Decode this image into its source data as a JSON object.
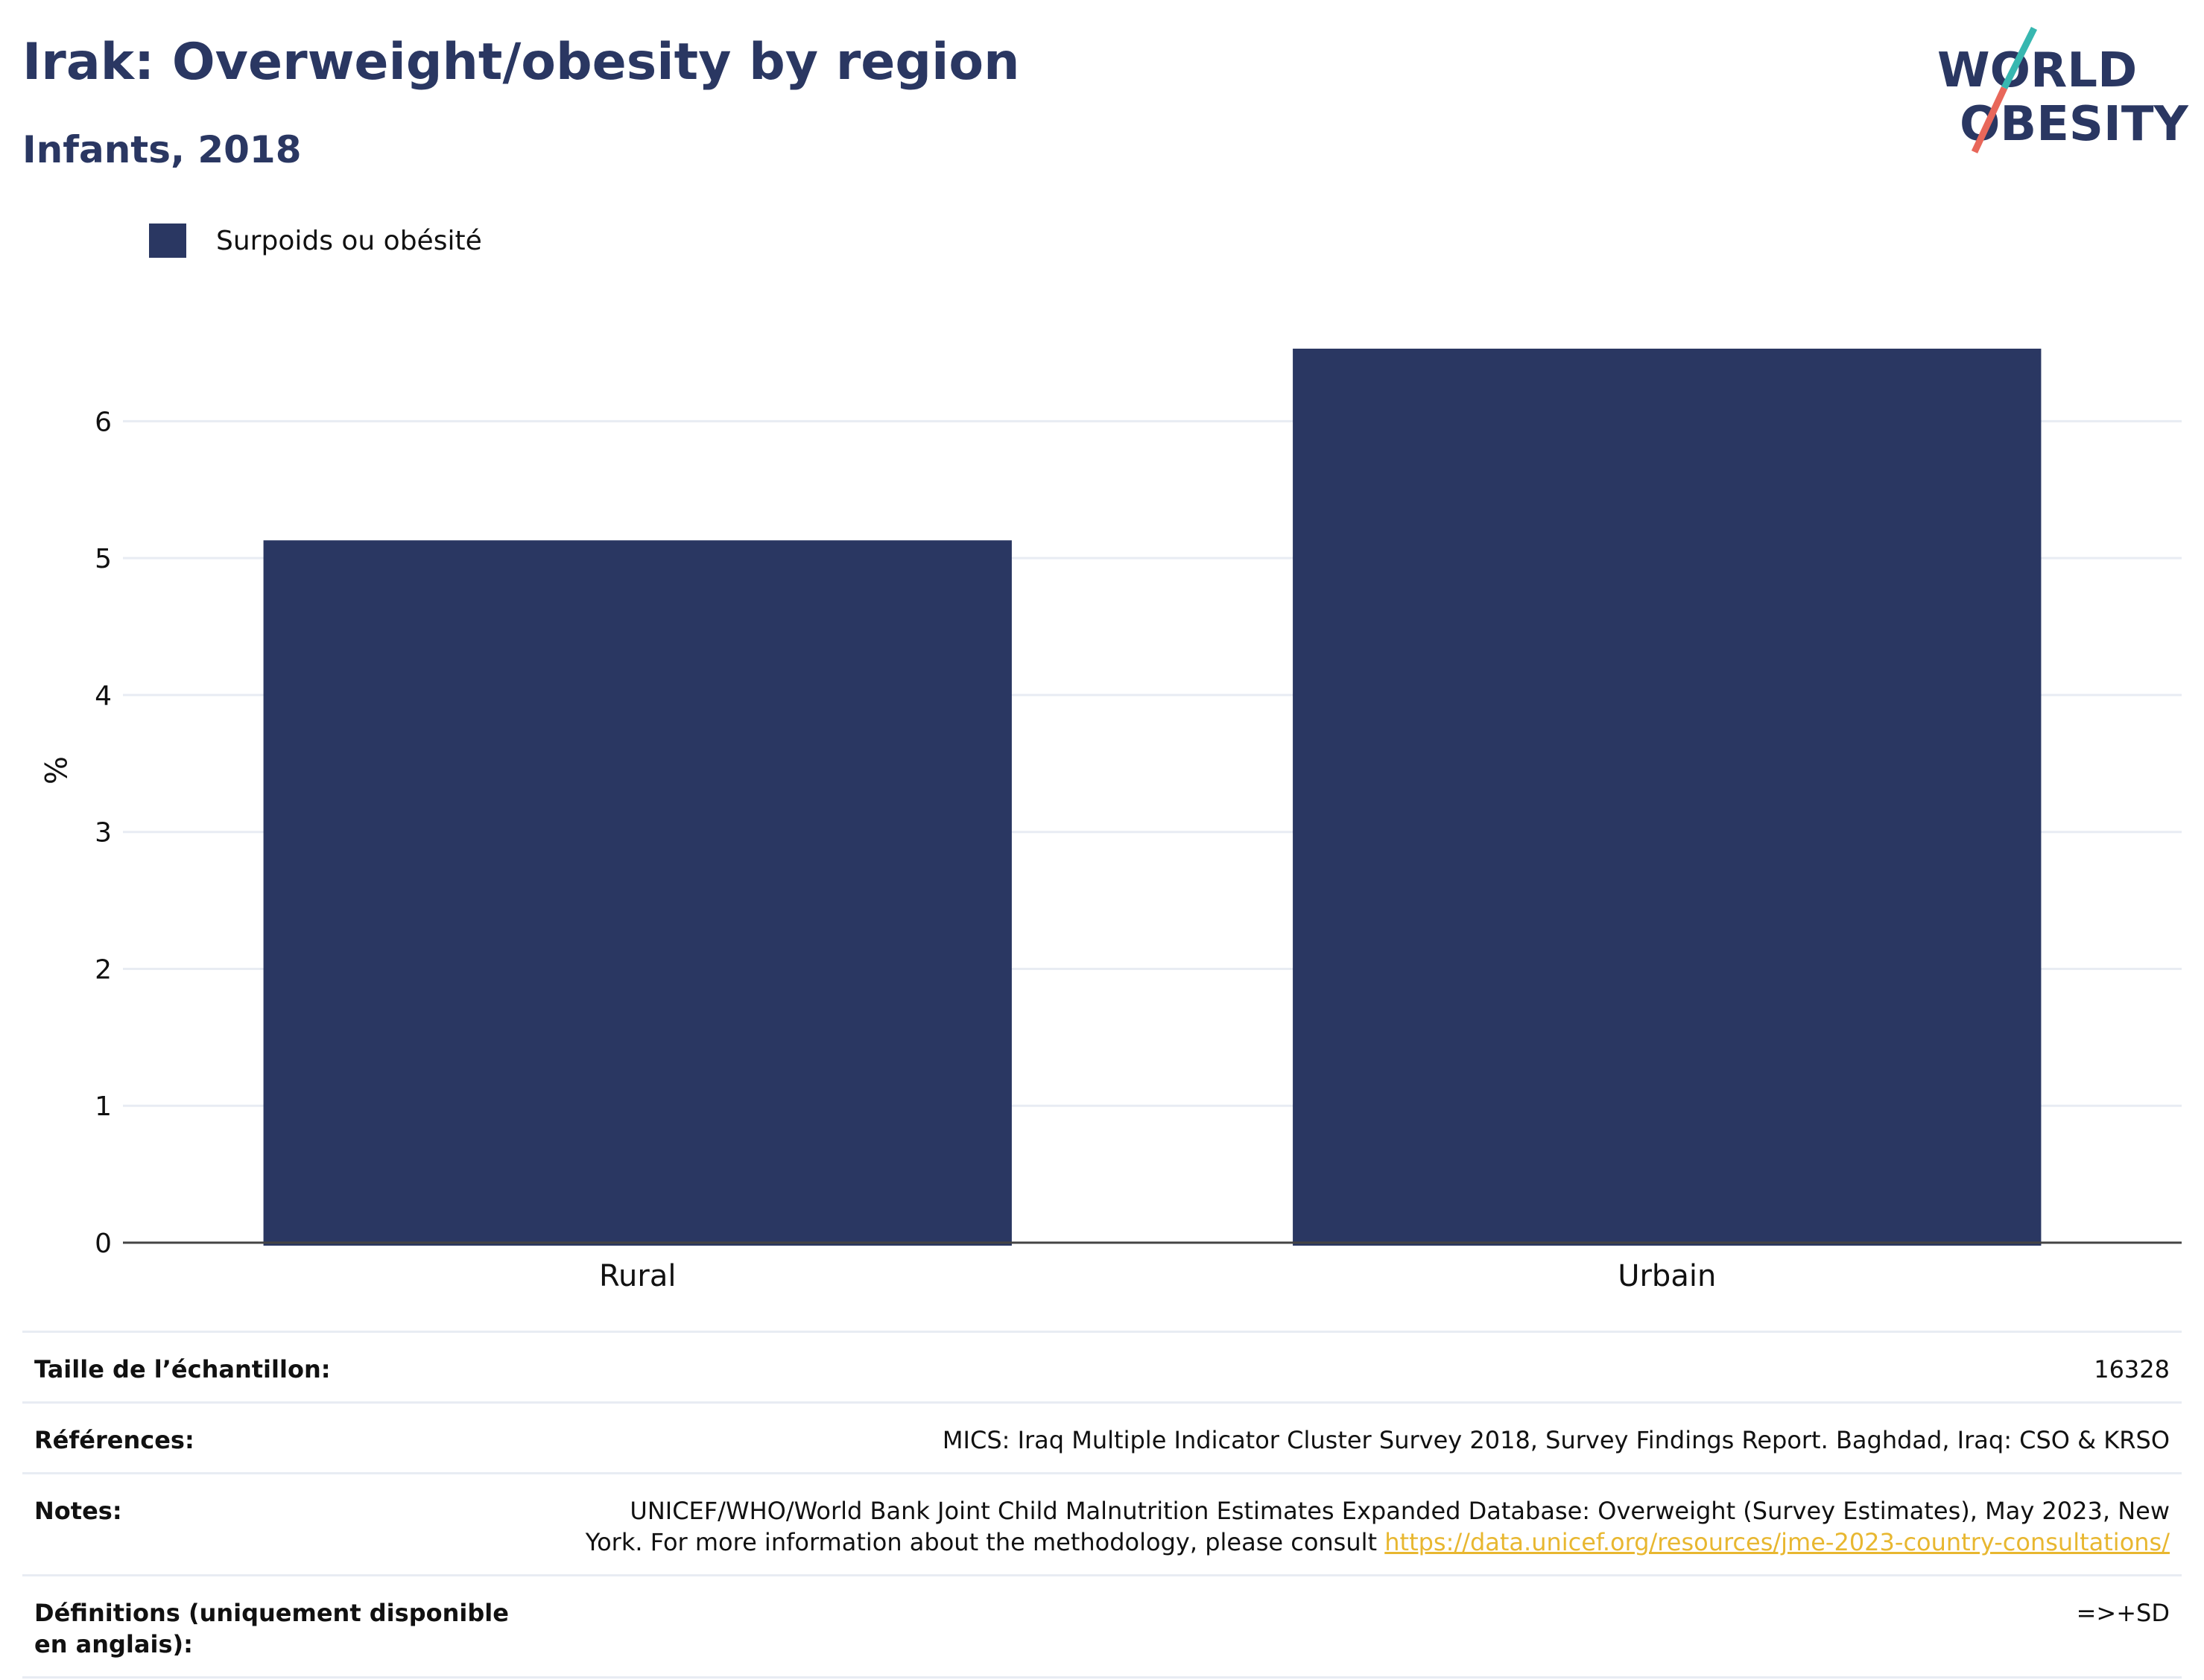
{
  "header": {
    "title": "Irak: Overweight/obesity by region",
    "subtitle": "Infants, 2018"
  },
  "logo": {
    "line1": "WORLD",
    "line2": "OBESITY",
    "colors": {
      "text": "#2a3762",
      "slash_top": "#37b7b0",
      "slash_bottom": "#e8675a"
    }
  },
  "legend": {
    "label": "Surpoids ou obésité",
    "color": "#2a3762"
  },
  "chart_data": {
    "type": "bar",
    "categories": [
      "Rural",
      "Urbain"
    ],
    "series": [
      {
        "name": "Surpoids ou obésité",
        "values": [
          5.13,
          6.53
        ]
      }
    ],
    "ylabel": "%",
    "xlabel": "",
    "ylim": [
      0,
      6.9
    ],
    "yticks": [
      0,
      1,
      2,
      3,
      4,
      5,
      6
    ],
    "grid": true,
    "legend_position": "top-left",
    "bar_color": "#2a3762"
  },
  "info": {
    "sample_label": "Taille de l’échantillon:",
    "sample_value": "16328",
    "references_label": "Références:",
    "references_value": "MICS: Iraq Multiple Indicator Cluster Survey 2018, Survey Findings Report. Baghdad, Iraq: CSO & KRSO",
    "notes_label": "Notes:",
    "notes_line1": "UNICEF/WHO/World Bank Joint Child Malnutrition Estimates Expanded Database: Overweight (Survey Estimates), May 2023, New",
    "notes_line2": "York. For more information about the methodology, please consult",
    "notes_link": "https://data.unicef.org/resources/jme-2023-country-consultations/",
    "definitions_label": "Définitions (uniquement disponible en anglais):",
    "definitions_value": "=>+SD"
  }
}
